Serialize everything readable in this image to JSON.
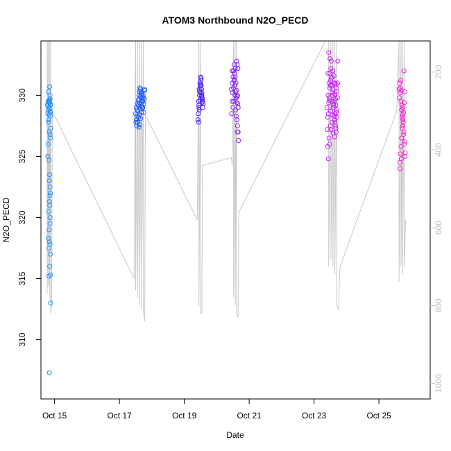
{
  "chart_data": {
    "type": "scatter",
    "title": "ATOM3 Northbound N2O_PECD",
    "xlabel": "Date",
    "ylabel": "N2O_PECD",
    "xlim": [
      14.58,
      26.58
    ],
    "ylim": [
      305.15,
      334.45
    ],
    "y2lim": [
      1040,
      120
    ],
    "x_ticks": [
      {
        "value": 15,
        "label": "Oct 15"
      },
      {
        "value": 17,
        "label": "Oct 17"
      },
      {
        "value": 19,
        "label": "Oct 19"
      },
      {
        "value": 21,
        "label": "Oct 21"
      },
      {
        "value": 23,
        "label": "Oct 23"
      },
      {
        "value": 25,
        "label": "Oct 25"
      }
    ],
    "y_ticks": [
      310,
      315,
      320,
      325,
      330
    ],
    "y2_ticks": [
      200,
      400,
      600,
      800,
      1000
    ],
    "grid": false,
    "legend": "none",
    "point_colors": [
      "#1e90ff",
      "#1c58ff",
      "#4a1cff",
      "#8a1cff",
      "#cc1cff",
      "#ff1cd6"
    ],
    "altitude_color": "#c8c8c8",
    "altitude_trace": [
      [
        14.77,
        120
      ],
      [
        14.77,
        770
      ],
      [
        14.8,
        120
      ],
      [
        14.8,
        750
      ],
      [
        14.84,
        120
      ],
      [
        14.84,
        780
      ],
      [
        14.88,
        120
      ],
      [
        14.88,
        820
      ],
      [
        14.91,
        800
      ],
      [
        14.93,
        300
      ],
      [
        17.45,
        730
      ],
      [
        17.5,
        120
      ],
      [
        17.5,
        760
      ],
      [
        17.56,
        120
      ],
      [
        17.56,
        780
      ],
      [
        17.62,
        120
      ],
      [
        17.62,
        800
      ],
      [
        17.68,
        120
      ],
      [
        17.68,
        810
      ],
      [
        17.74,
        120
      ],
      [
        17.74,
        820
      ],
      [
        17.78,
        840
      ],
      [
        17.8,
        310
      ],
      [
        19.4,
        580
      ],
      [
        19.45,
        120
      ],
      [
        19.45,
        800
      ],
      [
        19.5,
        120
      ],
      [
        19.5,
        820
      ],
      [
        19.54,
        820
      ],
      [
        19.56,
        440
      ],
      [
        20.45,
        420
      ],
      [
        20.48,
        440
      ],
      [
        20.52,
        120
      ],
      [
        20.52,
        780
      ],
      [
        20.57,
        120
      ],
      [
        20.57,
        800
      ],
      [
        20.61,
        120
      ],
      [
        20.61,
        820
      ],
      [
        20.66,
        830
      ],
      [
        20.68,
        560
      ],
      [
        23.35,
        120
      ],
      [
        23.45,
        120
      ],
      [
        23.45,
        700
      ],
      [
        23.52,
        120
      ],
      [
        23.52,
        680
      ],
      [
        23.58,
        120
      ],
      [
        23.58,
        700
      ],
      [
        23.64,
        120
      ],
      [
        23.64,
        720
      ],
      [
        23.7,
        120
      ],
      [
        23.7,
        800
      ],
      [
        23.75,
        810
      ],
      [
        23.8,
        700
      ],
      [
        25.55,
        300
      ],
      [
        25.62,
        120
      ],
      [
        25.62,
        740
      ],
      [
        25.68,
        120
      ],
      [
        25.68,
        700
      ],
      [
        25.73,
        120
      ],
      [
        25.73,
        720
      ],
      [
        25.78,
        120
      ],
      [
        25.78,
        700
      ],
      [
        25.82,
        580
      ]
    ],
    "series": [
      {
        "color": "#1e90ff",
        "x": [
          14.78,
          14.8,
          14.82,
          14.79,
          14.83,
          14.81,
          14.85,
          14.86,
          14.88,
          14.8,
          14.79,
          14.83,
          14.84,
          14.86,
          14.87,
          14.84,
          14.85,
          14.82,
          14.83,
          14.81,
          14.83,
          14.86,
          14.87,
          14.85,
          14.88,
          14.83,
          14.84,
          14.86,
          14.87,
          14.88,
          14.81,
          14.84,
          14.86,
          14.82,
          14.8,
          14.84,
          14.86,
          14.87,
          14.85,
          14.86,
          14.83,
          14.84,
          14.82,
          14.87,
          14.86,
          14.86,
          14.85,
          14.87,
          14.86,
          14.84,
          14.88
        ],
        "y": [
          329.2,
          329.5,
          330.3,
          328.5,
          329.6,
          329.3,
          330.7,
          330.0,
          327.3,
          326.0,
          325.0,
          324.7,
          323.0,
          322.5,
          322.0,
          321.3,
          321.0,
          320.5,
          319.0,
          318.3,
          317.5,
          317.8,
          317.0,
          316.0,
          315.3,
          315.2,
          307.3,
          328.9,
          328.6,
          328.3,
          327.8,
          327.0,
          326.8,
          329.0,
          328.8,
          329.4,
          329.7,
          329.2,
          329.6,
          328.7,
          329.5,
          328.4,
          328.0,
          329.3,
          320.0,
          319.5,
          323.5,
          326.5,
          321.8,
          318.0,
          313.0
        ]
      },
      {
        "color": "#1c58ff",
        "x": [
          17.5,
          17.52,
          17.55,
          17.58,
          17.6,
          17.62,
          17.65,
          17.68,
          17.7,
          17.72,
          17.75,
          17.78,
          17.52,
          17.55,
          17.58,
          17.6,
          17.62,
          17.65,
          17.68,
          17.7,
          17.72,
          17.75,
          17.53,
          17.56,
          17.59,
          17.61,
          17.64,
          17.67,
          17.69,
          17.71,
          17.74,
          17.77,
          17.51,
          17.54,
          17.57,
          17.63,
          17.66,
          17.73,
          17.76,
          17.6,
          17.62,
          17.65,
          17.68,
          17.7
        ],
        "y": [
          328.5,
          329.0,
          329.3,
          329.6,
          330.0,
          330.3,
          330.5,
          330.2,
          329.8,
          329.5,
          329.3,
          330.4,
          328.0,
          328.8,
          329.2,
          329.7,
          329.4,
          329.9,
          330.1,
          329.6,
          329.0,
          328.6,
          327.5,
          327.8,
          328.2,
          328.4,
          328.9,
          329.1,
          329.3,
          329.5,
          329.8,
          330.5,
          327.8,
          328.3,
          328.7,
          330.6,
          330.3,
          330.0,
          329.7,
          327.4,
          327.6,
          328.1,
          328.6,
          329.0
        ]
      },
      {
        "color": "#4a1cff",
        "x": [
          19.42,
          19.44,
          19.46,
          19.48,
          19.5,
          19.52,
          19.54,
          19.56,
          19.58,
          19.43,
          19.45,
          19.47,
          19.49,
          19.51,
          19.53,
          19.55,
          19.57,
          19.44,
          19.46,
          19.48,
          19.5,
          19.52,
          19.54,
          19.56,
          19.45,
          19.47,
          19.49,
          19.51,
          19.53,
          19.55
        ],
        "y": [
          328.0,
          329.5,
          330.5,
          331.0,
          331.5,
          330.8,
          330.2,
          329.7,
          329.3,
          328.5,
          329.0,
          330.0,
          330.8,
          331.2,
          330.5,
          329.8,
          329.0,
          327.8,
          328.8,
          329.6,
          330.2,
          331.4,
          330.0,
          329.5,
          329.2,
          330.3,
          331.0,
          330.6,
          329.9,
          329.4
        ]
      },
      {
        "color": "#8a1cff",
        "x": [
          20.45,
          20.48,
          20.5,
          20.52,
          20.54,
          20.56,
          20.58,
          20.6,
          20.62,
          20.64,
          20.47,
          20.49,
          20.51,
          20.53,
          20.55,
          20.57,
          20.59,
          20.61,
          20.63,
          20.65,
          20.46,
          20.5,
          20.52,
          20.56,
          20.58,
          20.6,
          20.62,
          20.64,
          20.66,
          20.48,
          20.54,
          20.57,
          20.61,
          20.63,
          20.65,
          20.66,
          20.67,
          20.64
        ],
        "y": [
          330.5,
          331.0,
          331.5,
          332.0,
          331.3,
          330.8,
          330.3,
          329.8,
          329.4,
          330.0,
          329.5,
          330.2,
          330.6,
          331.2,
          331.8,
          332.2,
          331.0,
          330.4,
          329.9,
          329.3,
          328.5,
          329.0,
          329.5,
          330.0,
          328.8,
          328.3,
          328.0,
          327.5,
          327.0,
          332.0,
          332.5,
          331.5,
          332.8,
          332.5,
          332.2,
          329.0,
          326.3,
          327.0
        ]
      },
      {
        "color": "#cc1cff",
        "x": [
          23.4,
          23.43,
          23.46,
          23.49,
          23.52,
          23.55,
          23.58,
          23.61,
          23.64,
          23.67,
          23.7,
          23.73,
          23.42,
          23.45,
          23.48,
          23.51,
          23.54,
          23.57,
          23.6,
          23.63,
          23.66,
          23.69,
          23.72,
          23.41,
          23.44,
          23.47,
          23.5,
          23.53,
          23.56,
          23.59,
          23.62,
          23.65,
          23.68,
          23.71,
          23.42,
          23.46,
          23.5,
          23.54,
          23.58,
          23.62,
          23.66,
          23.7,
          23.45,
          23.49,
          23.53,
          23.57,
          23.61,
          23.65,
          23.69,
          23.73,
          23.44,
          23.48,
          23.52,
          23.56,
          23.6,
          23.64,
          23.68,
          23.43,
          23.47,
          23.51,
          23.55,
          23.59,
          23.63,
          23.67
        ],
        "y": [
          329.0,
          330.0,
          331.0,
          331.8,
          332.2,
          331.5,
          330.5,
          329.5,
          328.5,
          329.2,
          330.3,
          331.0,
          328.2,
          329.4,
          330.6,
          331.2,
          330.8,
          330.0,
          329.2,
          328.0,
          327.5,
          328.6,
          329.8,
          327.2,
          328.5,
          329.8,
          330.8,
          331.4,
          330.2,
          329.0,
          328.3,
          327.8,
          327.0,
          328.2,
          325.8,
          326.5,
          327.5,
          329.5,
          330.5,
          331.0,
          329.7,
          328.8,
          333.5,
          333.0,
          332.8,
          332.0,
          331.6,
          331.0,
          330.6,
          332.8,
          324.8,
          326.0,
          327.2,
          328.4,
          329.3,
          330.1,
          330.9,
          331.8,
          329.6,
          328.7,
          327.8,
          326.9,
          326.6,
          327.3
        ]
      },
      {
        "color": "#ff1cd6",
        "x": [
          25.62,
          25.64,
          25.66,
          25.68,
          25.7,
          25.72,
          25.74,
          25.76,
          25.78,
          25.8,
          25.63,
          25.65,
          25.67,
          25.69,
          25.71,
          25.73,
          25.75,
          25.77,
          25.79,
          25.81,
          25.64,
          25.66,
          25.68,
          25.7,
          25.72,
          25.74,
          25.76,
          25.78,
          25.8,
          25.65,
          25.69,
          25.73,
          25.77
        ],
        "y": [
          330.5,
          331.0,
          330.2,
          329.5,
          328.8,
          328.2,
          327.5,
          326.8,
          326.0,
          325.0,
          329.8,
          330.6,
          331.2,
          330.4,
          329.2,
          328.4,
          327.8,
          327.0,
          326.2,
          325.3,
          324.5,
          325.2,
          325.8,
          326.5,
          327.3,
          328.0,
          328.6,
          329.4,
          330.3,
          324.0,
          324.8,
          329.0,
          332.0
        ]
      }
    ]
  }
}
